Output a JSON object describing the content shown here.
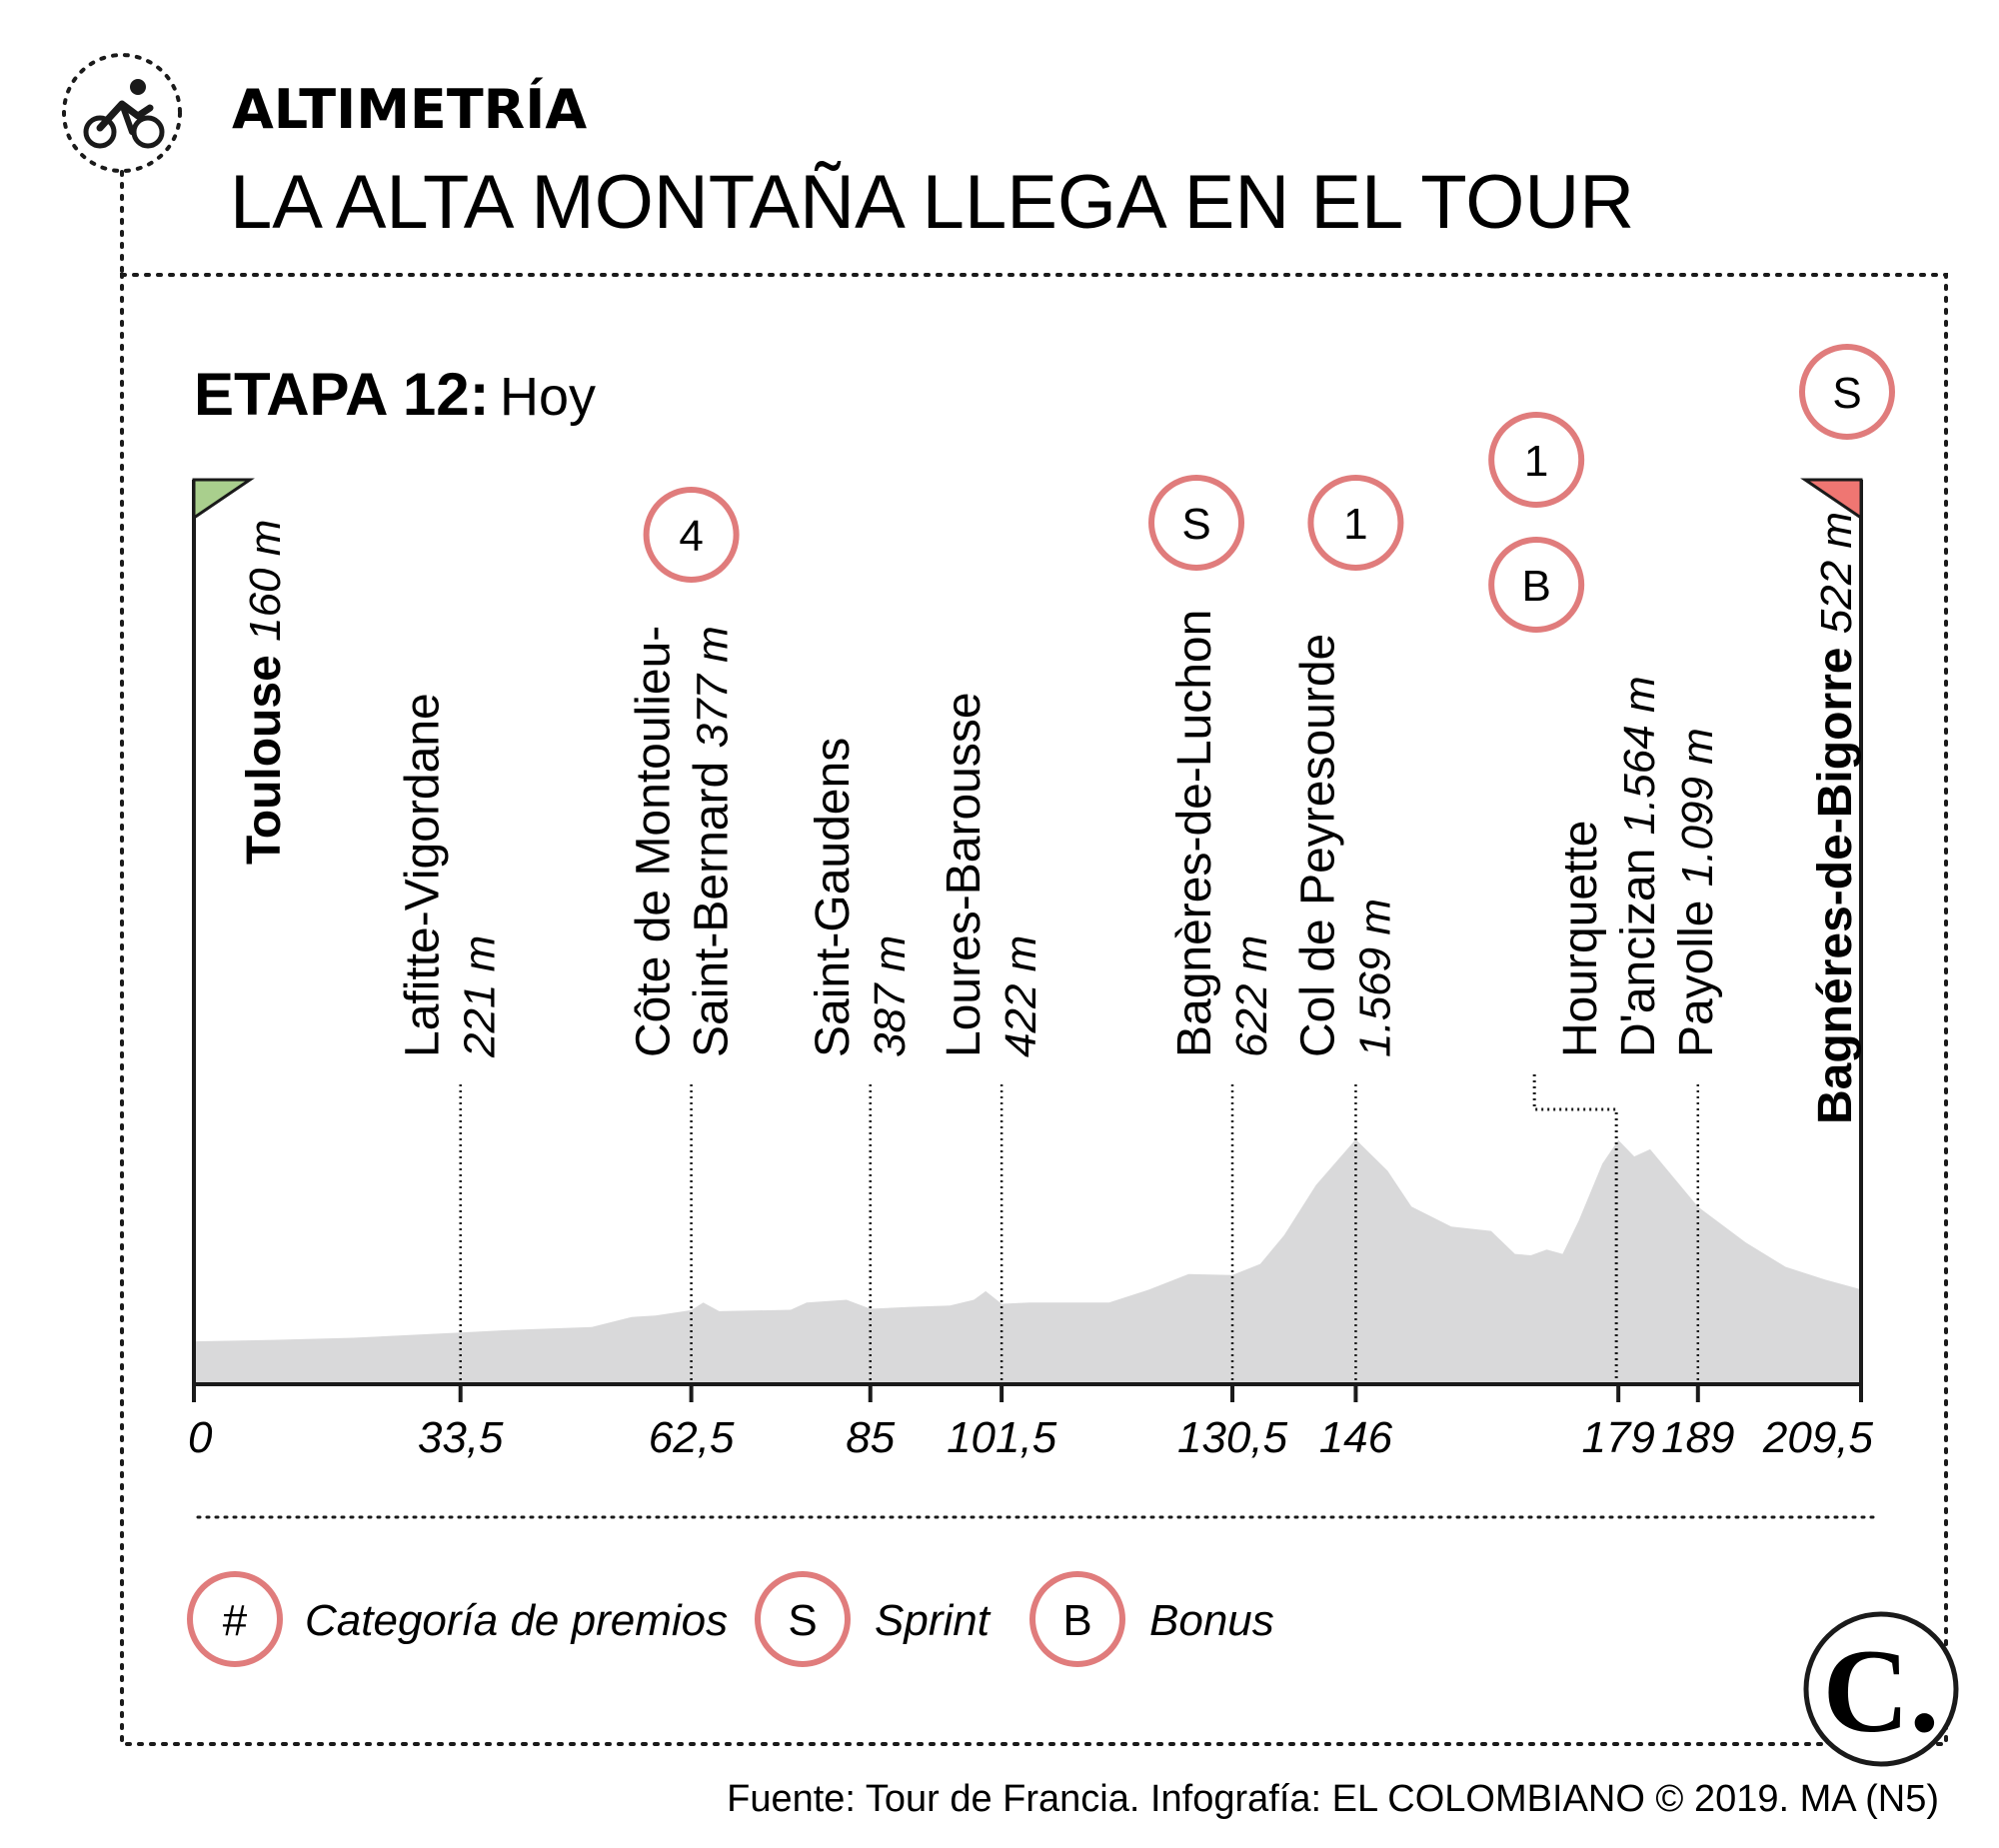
{
  "header": {
    "kicker": "ALTIMETRÍA",
    "headline": "LA ALTA MONTAÑA LLEGA EN EL TOUR",
    "icon": "cyclist-icon"
  },
  "stage": {
    "number_label": "ETAPA 12:",
    "day_label": "Hoy"
  },
  "chart_data": {
    "type": "area",
    "xlim": [
      0,
      209.5
    ],
    "x_ticks": [
      {
        "value": 0,
        "label": "0"
      },
      {
        "value": 33.5,
        "label": "33,5"
      },
      {
        "value": 62.5,
        "label": "62,5"
      },
      {
        "value": 85,
        "label": "85"
      },
      {
        "value": 101.5,
        "label": "101,5"
      },
      {
        "value": 130.5,
        "label": "130,5"
      },
      {
        "value": 146,
        "label": "146"
      },
      {
        "value": 179,
        "label": "179"
      },
      {
        "value": 189,
        "label": "189"
      },
      {
        "value": 209.5,
        "label": "209,5"
      }
    ],
    "profile": [
      [
        0,
        160
      ],
      [
        10,
        170
      ],
      [
        20,
        185
      ],
      [
        33.5,
        221
      ],
      [
        40,
        240
      ],
      [
        50,
        260
      ],
      [
        55,
        330
      ],
      [
        58,
        340
      ],
      [
        62.5,
        377
      ],
      [
        64,
        430
      ],
      [
        66,
        370
      ],
      [
        75,
        380
      ],
      [
        77,
        430
      ],
      [
        82,
        450
      ],
      [
        85,
        387
      ],
      [
        90,
        400
      ],
      [
        95,
        410
      ],
      [
        98,
        450
      ],
      [
        99.5,
        510
      ],
      [
        101.5,
        422
      ],
      [
        105,
        430
      ],
      [
        115,
        430
      ],
      [
        120,
        520
      ],
      [
        125,
        630
      ],
      [
        130.5,
        622
      ],
      [
        134,
        700
      ],
      [
        137,
        900
      ],
      [
        141,
        1250
      ],
      [
        146,
        1569
      ],
      [
        150,
        1350
      ],
      [
        153,
        1100
      ],
      [
        158,
        960
      ],
      [
        163,
        930
      ],
      [
        166,
        770
      ],
      [
        168,
        760
      ],
      [
        170,
        800
      ],
      [
        172,
        770
      ],
      [
        174,
        1000
      ],
      [
        177,
        1400
      ],
      [
        179,
        1564
      ],
      [
        181,
        1450
      ],
      [
        183,
        1500
      ],
      [
        186,
        1300
      ],
      [
        189,
        1099
      ],
      [
        195,
        850
      ],
      [
        200,
        680
      ],
      [
        205,
        590
      ],
      [
        209.5,
        522
      ]
    ],
    "locations": [
      {
        "km": 0,
        "name": "Toulouse",
        "alt": "160 m",
        "bold": true,
        "flag": "start"
      },
      {
        "km": 33.5,
        "name": "Lafitte-Vigordane",
        "alt": "221 m"
      },
      {
        "km": 62.5,
        "name": "Côte de Montoulieu-",
        "name2": "Saint-Bernard",
        "alt": "377 m",
        "badges": [
          "4"
        ]
      },
      {
        "km": 85,
        "name": "Saint-Gaudens",
        "alt": "387 m"
      },
      {
        "km": 101.5,
        "name": "Loures-Barousse",
        "alt": "422 m"
      },
      {
        "km": 130.5,
        "name": "Bagnères-de-Luchon",
        "alt": "622 m",
        "badges": [
          "S"
        ]
      },
      {
        "km": 146,
        "name": "Col de Peyresourde",
        "alt": "1.569 m",
        "badges": [
          "1"
        ]
      },
      {
        "km": 179,
        "name": "Hourquette",
        "name2": "D'ancizan",
        "alt": "1.564 m",
        "badges": [
          "1",
          "B"
        ]
      },
      {
        "km": 189,
        "name": "Payolle",
        "alt": "1.099 m"
      },
      {
        "km": 209.5,
        "name": "Bagnéres-de-Bigorre",
        "alt": "522 m",
        "bold": true,
        "flag": "finish",
        "badges": [
          "S"
        ]
      }
    ],
    "colors": {
      "profile_fill": "#d9d9da",
      "badge_ring": "#e07c7c",
      "start_flag": "#a9cf8d",
      "finish_flag": "#ef7672"
    }
  },
  "legend": [
    {
      "symbol": "#",
      "label": "Categoría de premios"
    },
    {
      "symbol": "S",
      "label": "Sprint"
    },
    {
      "symbol": "B",
      "label": "Bonus"
    }
  ],
  "footer": {
    "source": "Fuente: Tour de Francia. Infografía: EL COLOMBIANO © 2019. MA (N5)",
    "logo": "C."
  }
}
